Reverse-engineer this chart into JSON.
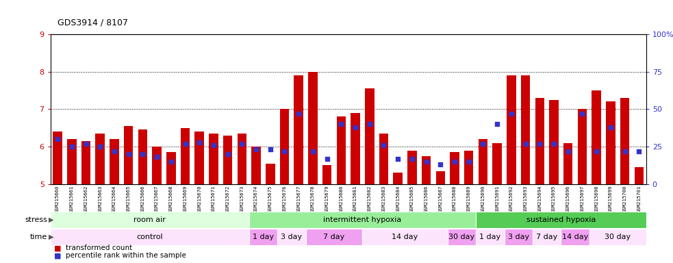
{
  "title": "GDS3914 / 8107",
  "ylim_left": [
    5,
    9
  ],
  "ylim_right": [
    0,
    100
  ],
  "yticks_left": [
    5,
    6,
    7,
    8,
    9
  ],
  "yticks_right": [
    0,
    25,
    50,
    75,
    100
  ],
  "ytick_labels_right": [
    "0",
    "25",
    "50",
    "75",
    "100%"
  ],
  "bar_color": "#cc0000",
  "dot_color": "#3333cc",
  "grid_dots": [
    6,
    7,
    8
  ],
  "samples": [
    "GSM215660",
    "GSM215661",
    "GSM215662",
    "GSM215663",
    "GSM215664",
    "GSM215665",
    "GSM215666",
    "GSM215667",
    "GSM215668",
    "GSM215669",
    "GSM215670",
    "GSM215671",
    "GSM215672",
    "GSM215673",
    "GSM215674",
    "GSM215675",
    "GSM215676",
    "GSM215677",
    "GSM215678",
    "GSM215679",
    "GSM215680",
    "GSM215681",
    "GSM215682",
    "GSM215683",
    "GSM215684",
    "GSM215685",
    "GSM215686",
    "GSM215687",
    "GSM215688",
    "GSM215689",
    "GSM215690",
    "GSM215691",
    "GSM215692",
    "GSM215693",
    "GSM215694",
    "GSM215695",
    "GSM215696",
    "GSM215697",
    "GSM215698",
    "GSM215699",
    "GSM215700",
    "GSM215701"
  ],
  "bar_values": [
    6.4,
    6.2,
    6.15,
    6.35,
    6.2,
    6.55,
    6.45,
    6.0,
    5.85,
    6.5,
    6.4,
    6.35,
    6.3,
    6.35,
    6.0,
    5.55,
    7.0,
    7.9,
    8.0,
    5.5,
    6.8,
    6.9,
    7.55,
    6.35,
    5.3,
    5.9,
    5.75,
    5.35,
    5.85,
    5.9,
    6.2,
    6.1,
    7.9,
    7.9,
    7.3,
    7.25,
    6.1,
    7.0,
    7.5,
    7.2,
    7.3,
    5.45
  ],
  "dot_values_pct": [
    30,
    25,
    27,
    25,
    22,
    20,
    20,
    18,
    15,
    27,
    28,
    26,
    20,
    27,
    23,
    23,
    22,
    47,
    22,
    17,
    40,
    38,
    40,
    26,
    17,
    17,
    15,
    13,
    15,
    15,
    27,
    40,
    47,
    27,
    27,
    27,
    22,
    47,
    22,
    38,
    22,
    22
  ],
  "stress_groups": [
    {
      "label": "room air",
      "start": 0,
      "end": 14,
      "color": "#ddffdd"
    },
    {
      "label": "intermittent hypoxia",
      "start": 14,
      "end": 30,
      "color": "#99ee99"
    },
    {
      "label": "sustained hypoxia",
      "start": 30,
      "end": 42,
      "color": "#55cc55"
    }
  ],
  "time_groups": [
    {
      "label": "control",
      "start": 0,
      "end": 14,
      "color": "#fce4fc"
    },
    {
      "label": "1 day",
      "start": 14,
      "end": 16,
      "color": "#f0a0f0"
    },
    {
      "label": "3 day",
      "start": 16,
      "end": 18,
      "color": "#fce4fc"
    },
    {
      "label": "7 day",
      "start": 18,
      "end": 22,
      "color": "#f0a0f0"
    },
    {
      "label": "14 day",
      "start": 22,
      "end": 28,
      "color": "#fce4fc"
    },
    {
      "label": "30 day",
      "start": 28,
      "end": 30,
      "color": "#f0a0f0"
    },
    {
      "label": "1 day",
      "start": 30,
      "end": 32,
      "color": "#fce4fc"
    },
    {
      "label": "3 day",
      "start": 32,
      "end": 34,
      "color": "#f0a0f0"
    },
    {
      "label": "7 day",
      "start": 34,
      "end": 36,
      "color": "#fce4fc"
    },
    {
      "label": "14 day",
      "start": 36,
      "end": 38,
      "color": "#f0a0f0"
    },
    {
      "label": "30 day",
      "start": 38,
      "end": 42,
      "color": "#fce4fc"
    }
  ],
  "bg_color": "#ffffff",
  "xticklabel_bg": "#cccccc",
  "tick_label_color_left": "#cc0000",
  "tick_label_color_right": "#3333cc"
}
